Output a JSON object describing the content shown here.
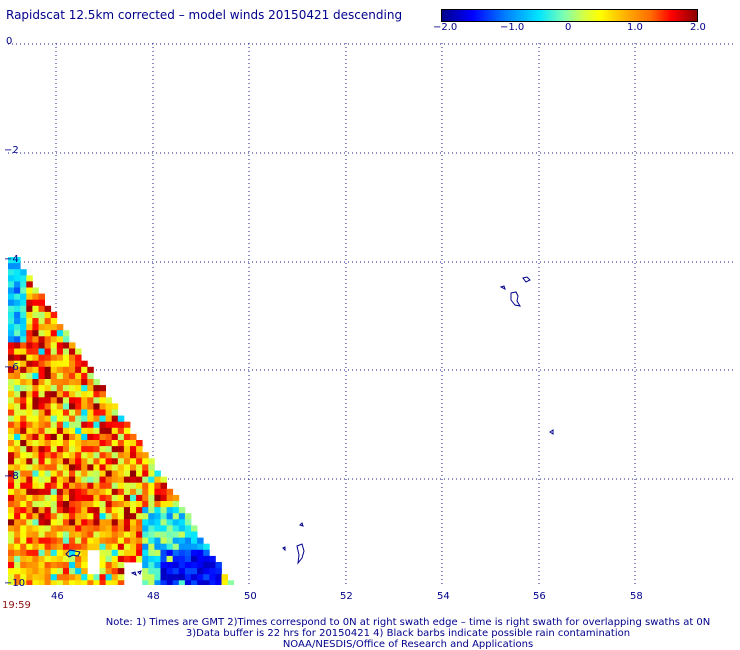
{
  "title": "Rapidscat 12.5km corrected – model winds 20150421 descending",
  "colorbar": {
    "ticks": [
      "−2.0",
      "−1.0",
      "0",
      "1.0",
      "2.0"
    ],
    "colors": [
      "#00008b",
      "#0000ff",
      "#0080ff",
      "#00e5ff",
      "#7fffb0",
      "#d8ff40",
      "#ffff00",
      "#ffb000",
      "#ff6a00",
      "#ff0000",
      "#8b0000"
    ]
  },
  "chart_data": {
    "type": "heatmap",
    "xlim": [
      44.5,
      60
    ],
    "ylim": [
      -10,
      0
    ],
    "grid": true,
    "x_ticks": [
      "46",
      "48",
      "50",
      "52",
      "54",
      "56",
      "58"
    ],
    "y_ticks": [
      "0",
      "−2",
      "−4",
      "−6",
      "−8",
      "−10"
    ],
    "value_range": [
      -2.0,
      2.0
    ]
  },
  "timestamp": "19:59",
  "notes": [
    "Note: 1) Times are GMT 2)Times correspond to 0N at right swath edge – time is right swath for overlapping swaths at 0N",
    "3)Data buffer is 22 hrs for 20150421 4) Black barbs indicate possible rain contamination",
    "NOAA/NESDIS/Office of Research and Applications"
  ]
}
